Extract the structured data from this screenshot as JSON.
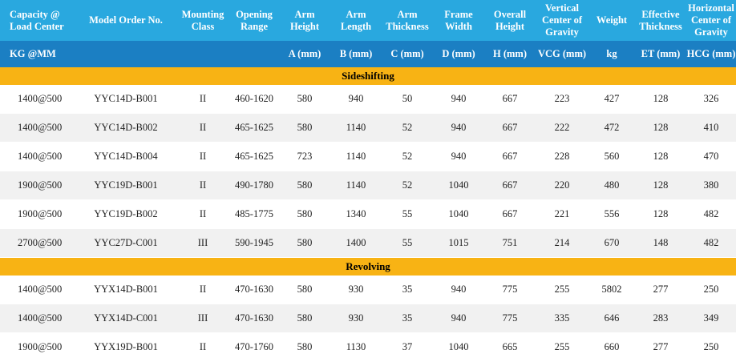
{
  "header": {
    "columns": [
      "Capacity @\nLoad Center",
      "Model Order No.",
      "Mounting\nClass",
      "Opening\nRange",
      "Arm\nHeight",
      "Arm\nLength",
      "Arm\nThickness",
      "Frame\nWidth",
      "Overall\nHeight",
      "Vertical\nCenter of\nGravity",
      "Weight",
      "Effective\nThickness",
      "Horizontal\nCenter of\nGravity"
    ],
    "units": [
      "KG @MM",
      "",
      "",
      "",
      "A (mm)",
      "B (mm)",
      "C (mm)",
      "D (mm)",
      "H (mm)",
      "VCG (mm)",
      "kg",
      "ET (mm)",
      "HCG (mm)"
    ]
  },
  "sections": [
    {
      "title": "Sideshifting",
      "rows": [
        [
          "1400@500",
          "YYC14D-B001",
          "II",
          "460-1620",
          "580",
          "940",
          "50",
          "940",
          "667",
          "223",
          "427",
          "128",
          "326"
        ],
        [
          "1400@500",
          "YYC14D-B002",
          "II",
          "465-1625",
          "580",
          "1140",
          "52",
          "940",
          "667",
          "222",
          "472",
          "128",
          "410"
        ],
        [
          "1400@500",
          "YYC14D-B004",
          "II",
          "465-1625",
          "723",
          "1140",
          "52",
          "940",
          "667",
          "228",
          "560",
          "128",
          "470"
        ],
        [
          "1900@500",
          "YYC19D-B001",
          "II",
          "490-1780",
          "580",
          "1140",
          "52",
          "1040",
          "667",
          "220",
          "480",
          "128",
          "380"
        ],
        [
          "1900@500",
          "YYC19D-B002",
          "II",
          "485-1775",
          "580",
          "1340",
          "55",
          "1040",
          "667",
          "221",
          "556",
          "128",
          "482"
        ],
        [
          "2700@500",
          "YYC27D-C001",
          "III",
          "590-1945",
          "580",
          "1400",
          "55",
          "1015",
          "751",
          "214",
          "670",
          "148",
          "482"
        ]
      ]
    },
    {
      "title": "Revolving",
      "rows": [
        [
          "1400@500",
          "YYX14D-B001",
          "II",
          "470-1630",
          "580",
          "930",
          "35",
          "940",
          "775",
          "255",
          "5802",
          "277",
          "250"
        ],
        [
          "1400@500",
          "YYX14D-C001",
          "III",
          "470-1630",
          "580",
          "930",
          "35",
          "940",
          "775",
          "335",
          "646",
          "283",
          "349"
        ],
        [
          "1900@500",
          "YYX19D-B001",
          "II",
          "470-1760",
          "580",
          "1130",
          "37",
          "1040",
          "665",
          "255",
          "660",
          "277",
          "250"
        ]
      ]
    }
  ]
}
